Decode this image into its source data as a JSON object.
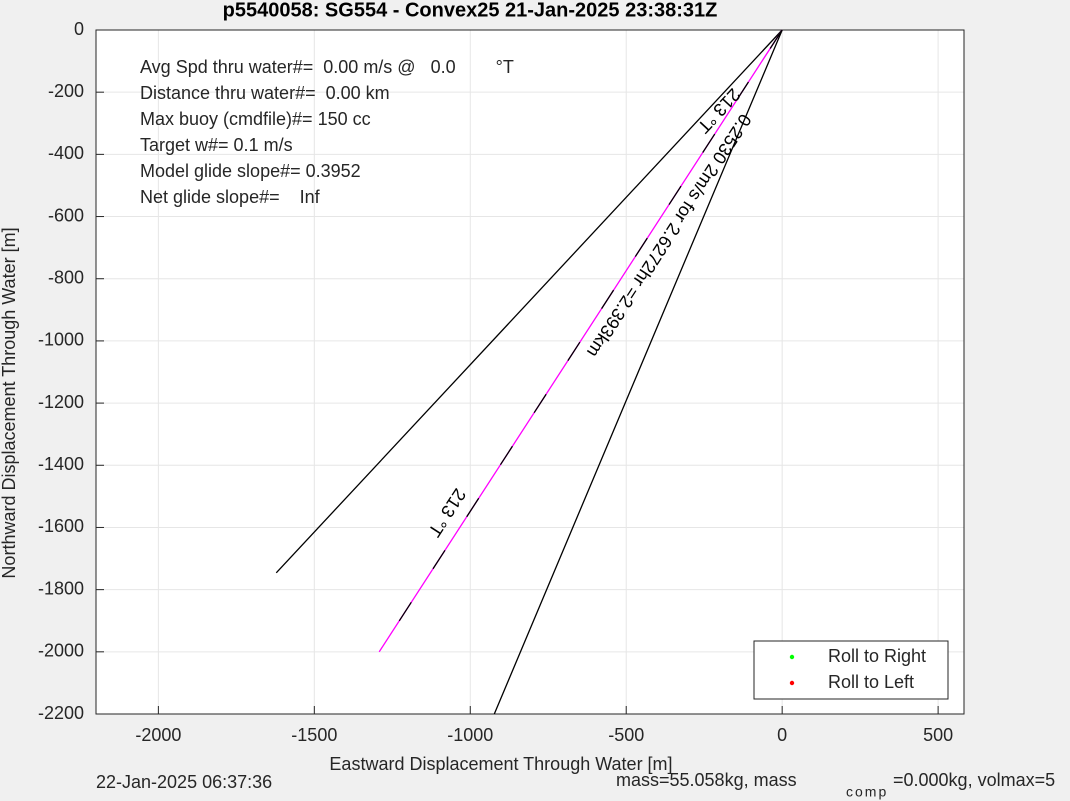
{
  "chart_data": {
    "type": "line",
    "title": "p5540058: SG554 - Convex25 21-Jan-2025 23:38:31Z",
    "x_label": "Eastward Displacement Through Water [m]",
    "y_label": "Northward Displacement Through Water [m]",
    "xlim": [
      -2200,
      583
    ],
    "ylim": [
      -2200,
      0
    ],
    "xticks": [
      -2000,
      -1500,
      -1000,
      -500,
      0,
      500
    ],
    "yticks": [
      0,
      -200,
      -400,
      -600,
      -800,
      -1000,
      -1200,
      -1400,
      -1600,
      -1800,
      -2000,
      -2200
    ],
    "grid": true,
    "lines": [
      {
        "x": [
          0,
          -1622
        ],
        "y": [
          0,
          -1746
        ],
        "color": "#000000"
      },
      {
        "x": [
          0,
          -1292
        ],
        "y": [
          0,
          -2000
        ],
        "color": "#ff00ff",
        "overlay_color": "#000000"
      },
      {
        "x": [
          0,
          -923
        ],
        "y": [
          0,
          -2200
        ],
        "color": "#000000"
      }
    ],
    "annotations": [
      "Avg Spd thru water#=  0.00 m/s @   0.0        °T",
      "Distance thru water#=  0.00 km",
      "Max buoy (cmdfile)#= 150 cc",
      "Target w#= 0.1 m/s",
      "Model glide slope#= 0.3952",
      "Net glide slope#=    Inf"
    ],
    "line_labels": [
      "213 °T",
      "0.2530 2m/s for 2.6272hr =2.393km",
      "213 °T"
    ],
    "legend": {
      "corner": "lower right",
      "entries": [
        {
          "label": "Roll to Right",
          "color": "#00ff00"
        },
        {
          "label": "Roll to Left",
          "color": "#ff0000"
        }
      ]
    },
    "footer_left": "22-Jan-2025 06:37:36",
    "footer_right": [
      "mass=55.058kg, mass",
      "comp",
      "=0.000kg, volmax=5"
    ]
  }
}
